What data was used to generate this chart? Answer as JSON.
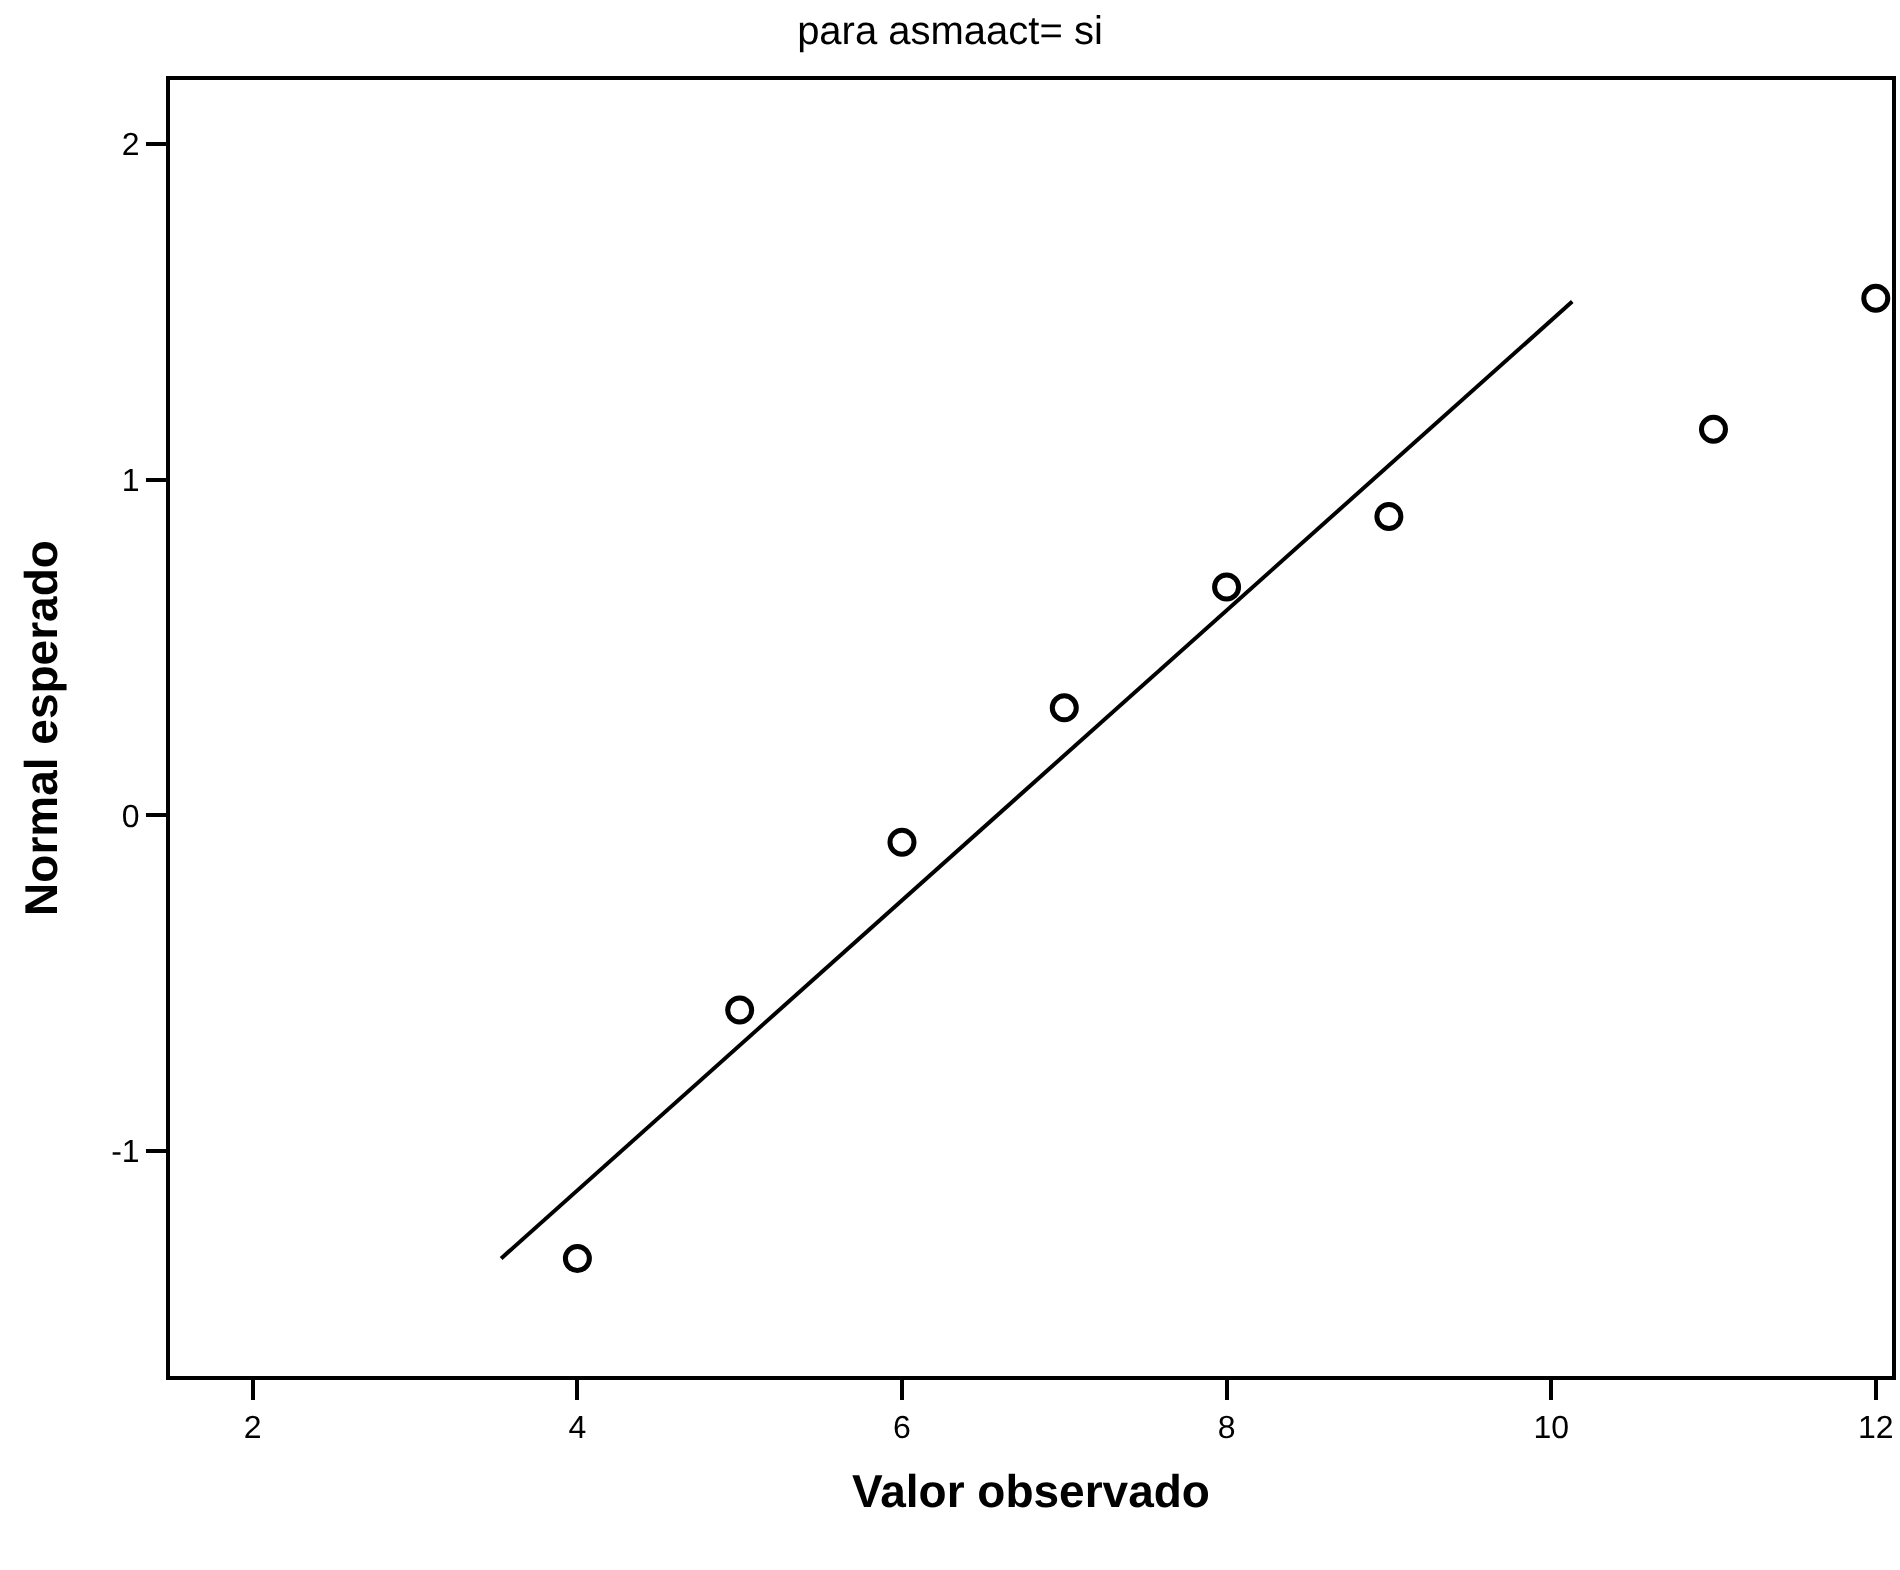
{
  "chart_data": {
    "type": "scatter",
    "title": "para asmaact= si",
    "xlabel": "Valor observado",
    "ylabel": "Normal esperado",
    "xlim": [
      1.49,
      12.1
    ],
    "xticks": [
      2,
      4,
      6,
      8,
      10,
      12
    ],
    "ylim": [
      -1.67,
      2.19
    ],
    "yticks": [
      -1,
      0,
      1,
      2
    ],
    "series": [
      {
        "marker": "circle",
        "color": "#000000",
        "x": [
          4,
          5,
          6,
          7,
          8,
          9,
          11,
          12
        ],
        "values": [
          -1.32,
          -0.58,
          -0.08,
          0.32,
          0.68,
          0.89,
          1.15,
          1.54
        ]
      },
      {
        "type": "line",
        "color": "#000000",
        "line_style": "solid",
        "x": [
          3.53,
          10.13
        ],
        "values": [
          -1.32,
          1.53
        ]
      }
    ]
  }
}
